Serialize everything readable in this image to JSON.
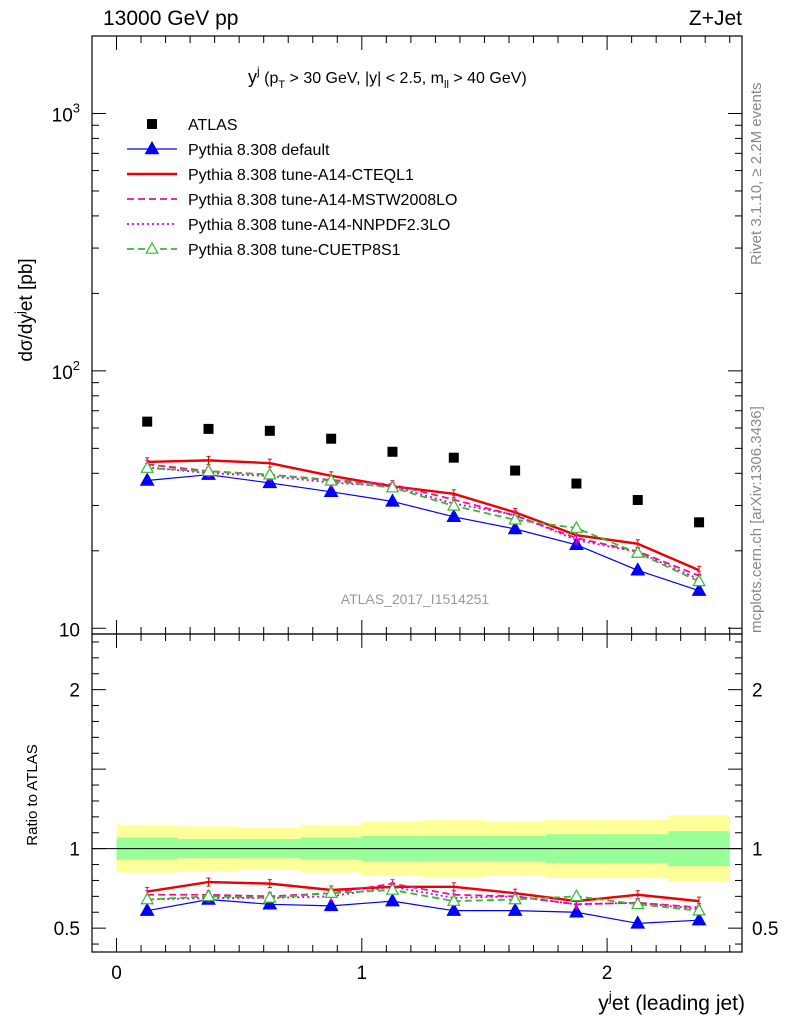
{
  "header": {
    "left": "13000 GeV pp",
    "right": "Z+Jet"
  },
  "side_text": {
    "rivet": "Rivet 3.1.10, ≥ 2.2M events",
    "mcplots": "mcplots.cern.ch [arXiv:1306.3436]"
  },
  "watermark": "ATLAS_2017_I1514251",
  "chart_data": {
    "type": "line",
    "title": "y^j (p_T > 30 GeV, |y| < 2.5, m_ll > 40 GeV)",
    "title_parts": {
      "y": "y",
      "j": "j",
      "open": " (p",
      "T": "T",
      "mid": " > 30 GeV, |y| < 2.5, m",
      "ll": "ll",
      "end": " > 40 GeV)"
    },
    "xlabel": "y^jet (leading jet)",
    "xlabel_parts": {
      "y": "y",
      "sup": "j",
      "rest": "et (leading jet)"
    },
    "ylabel": "dσ/dy^jet [pb]",
    "ylabel_parts": {
      "a": "dσ/dy",
      "sup": "j",
      "b": "et [pb]"
    },
    "ratio_ylabel": "Ratio to ATLAS",
    "xlim": [
      -0.1,
      2.55
    ],
    "ylim": [
      9.5,
      2000
    ],
    "yscale": "log",
    "ratio_ylim": [
      0.35,
      2.35
    ],
    "x_ticks": [
      0,
      1,
      2
    ],
    "x_tick_labels": [
      "0",
      "1",
      "2"
    ],
    "y_ticks": [
      10,
      100,
      1000
    ],
    "y_tick_labels": [
      "10",
      "10",
      "10"
    ],
    "y_tick_sup": [
      "",
      "2",
      "3"
    ],
    "ratio_ticks": [
      0.5,
      1,
      2
    ],
    "ratio_tick_labels": [
      "0.5",
      "1",
      "2"
    ],
    "bin_edges": [
      0,
      0.25,
      0.5,
      0.75,
      1.0,
      1.25,
      1.5,
      1.75,
      2.0,
      2.25,
      2.5
    ],
    "x": [
      0.125,
      0.375,
      0.625,
      0.875,
      1.125,
      1.375,
      1.625,
      1.875,
      2.125,
      2.375
    ],
    "data": {
      "name": "ATLAS",
      "values": [
        63.5,
        59.5,
        58.5,
        54.5,
        48.5,
        46.0,
        41.0,
        36.5,
        31.5,
        25.8
      ],
      "band_inner": [
        0.93,
        0.94,
        0.94,
        0.93,
        0.92,
        0.92,
        0.92,
        0.91,
        0.91,
        0.89
      ],
      "band_outer": [
        0.85,
        0.86,
        0.87,
        0.85,
        0.83,
        0.82,
        0.83,
        0.82,
        0.82,
        0.79
      ],
      "color": "#000000"
    },
    "series": [
      {
        "name": "Pythia 8.308 default",
        "style": "solid",
        "marker": "triangle-filled",
        "color": "#0000ff",
        "values": [
          37.5,
          39.5,
          36.7,
          33.9,
          31.1,
          27.1,
          24.3,
          21.1,
          16.8,
          14.0
        ],
        "ratio": [
          0.61,
          0.68,
          0.65,
          0.64,
          0.67,
          0.61,
          0.61,
          0.6,
          0.53,
          0.55
        ]
      },
      {
        "name": "Pythia 8.308 tune-A14-CTEQL1",
        "style": "solid",
        "marker": "none",
        "color": "#ee0000",
        "values": [
          44.3,
          44.9,
          43.8,
          39.1,
          35.6,
          33.3,
          28.2,
          23.0,
          21.3,
          16.8
        ],
        "ratio": [
          0.73,
          0.79,
          0.78,
          0.74,
          0.76,
          0.76,
          0.72,
          0.67,
          0.71,
          0.67
        ]
      },
      {
        "name": "Pythia 8.308 tune-A14-MSTW2008LO",
        "style": "dashed",
        "marker": "none",
        "color": "#ee1188",
        "values": [
          43.3,
          40.8,
          39.5,
          37.7,
          36.2,
          31.6,
          27.4,
          22.4,
          19.9,
          16.0
        ],
        "ratio": [
          0.71,
          0.71,
          0.7,
          0.72,
          0.78,
          0.71,
          0.7,
          0.65,
          0.66,
          0.63
        ]
      },
      {
        "name": "Pythia 8.308 tune-A14-NNPDF2.3LO",
        "style": "dotted",
        "marker": "none",
        "color": "#dd00dd",
        "values": [
          42.2,
          40.1,
          39.0,
          36.8,
          35.6,
          30.5,
          27.6,
          22.0,
          19.8,
          15.5
        ],
        "ratio": [
          0.68,
          0.69,
          0.69,
          0.7,
          0.76,
          0.69,
          0.7,
          0.65,
          0.66,
          0.62
        ]
      },
      {
        "name": "Pythia 8.308 tune-CUETP8S1",
        "style": "dashed",
        "marker": "triangle-open",
        "color": "#33bb33",
        "values": [
          41.9,
          40.7,
          39.5,
          37.4,
          35.2,
          29.9,
          26.4,
          24.5,
          19.6,
          15.2
        ],
        "ratio": [
          0.68,
          0.7,
          0.69,
          0.72,
          0.74,
          0.67,
          0.68,
          0.7,
          0.65,
          0.61
        ]
      }
    ]
  },
  "colors": {
    "band_inner": "#99ff99",
    "band_outer": "#ffff99",
    "axis": "#000000",
    "side_text": "#888888",
    "watermark": "#999999"
  }
}
